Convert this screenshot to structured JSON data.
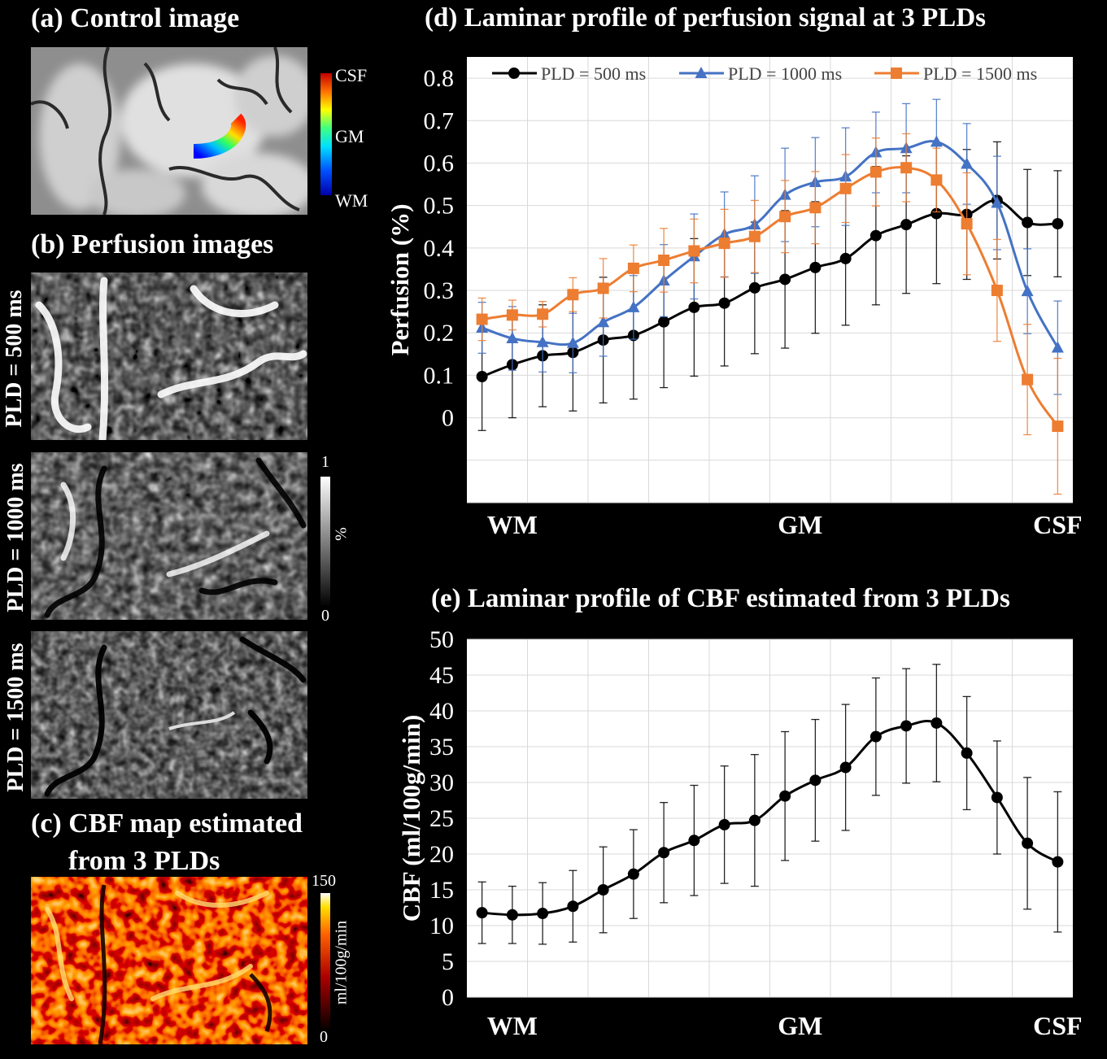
{
  "panels": {
    "a": {
      "title": "(a) Control image",
      "colorbar": {
        "top": "CSF",
        "mid": "GM",
        "bottom": "WM"
      }
    },
    "b": {
      "title": "(b) Perfusion images",
      "rows": [
        "PLD = 500 ms",
        "PLD = 1000 ms",
        "PLD = 1500 ms"
      ],
      "colorbar": {
        "max": "1",
        "min": "0",
        "unit": "%"
      }
    },
    "c": {
      "title_line1": "(c) CBF map estimated",
      "title_line2": "from 3 PLDs",
      "colorbar": {
        "max": "150",
        "min": "0",
        "unit": "ml/100g/min"
      }
    },
    "d": {
      "title": "(d) Laminar profile of perfusion signal at 3 PLDs"
    },
    "e": {
      "title": "(e) Laminar profile of CBF estimated from 3 PLDs"
    }
  },
  "chart_data": [
    {
      "type": "line",
      "ylabel": "Perfusion (%)",
      "ylim": [
        -0.2,
        0.85
      ],
      "yticks": [
        "0.8",
        "0.7",
        "0.6",
        "0.5",
        "0.4",
        "0.3",
        "0.2",
        "0.1",
        "0"
      ],
      "xtick_labels": [
        "WM",
        "GM",
        "CSF"
      ],
      "grid": true,
      "legend": "top",
      "series": [
        {
          "name": "PLD = 500 ms",
          "color": "#000000",
          "marker": "circle",
          "values": [
            0.097,
            0.125,
            0.146,
            0.154,
            0.183,
            0.194,
            0.226,
            0.26,
            0.27,
            0.306,
            0.326,
            0.354,
            0.375,
            0.429,
            0.455,
            0.481,
            0.479,
            0.512,
            0.46,
            0.457
          ],
          "err": [
            0.127,
            0.125,
            0.12,
            0.138,
            0.148,
            0.15,
            0.155,
            0.162,
            0.148,
            0.155,
            0.162,
            0.155,
            0.157,
            0.163,
            0.162,
            0.165,
            0.153,
            0.138,
            0.125,
            0.125
          ]
        },
        {
          "name": "PLD = 1000 ms",
          "color": "#4472C4",
          "marker": "triangle",
          "values": [
            0.212,
            0.187,
            0.178,
            0.176,
            0.225,
            0.26,
            0.323,
            0.38,
            0.432,
            0.455,
            0.525,
            0.555,
            0.568,
            0.625,
            0.635,
            0.65,
            0.598,
            0.506,
            0.298,
            0.165
          ],
          "err": [
            0.06,
            0.075,
            0.07,
            0.07,
            0.08,
            0.075,
            0.085,
            0.1,
            0.1,
            0.115,
            0.11,
            0.105,
            0.115,
            0.095,
            0.105,
            0.1,
            0.095,
            0.11,
            0.1,
            0.11
          ]
        },
        {
          "name": "PLD = 1500 ms",
          "color": "#ED7D31",
          "marker": "square",
          "values": [
            0.232,
            0.242,
            0.244,
            0.29,
            0.305,
            0.352,
            0.371,
            0.393,
            0.411,
            0.427,
            0.474,
            0.495,
            0.54,
            0.579,
            0.589,
            0.56,
            0.457,
            0.3,
            0.09,
            -0.02
          ],
          "err": [
            0.05,
            0.035,
            0.03,
            0.04,
            0.07,
            0.055,
            0.075,
            0.075,
            0.08,
            0.085,
            0.085,
            0.085,
            0.08,
            0.08,
            0.08,
            0.075,
            0.12,
            0.12,
            0.13,
            0.16
          ]
        }
      ]
    },
    {
      "type": "line",
      "ylabel": "CBF (ml/100g/min)",
      "ylim": [
        0,
        50
      ],
      "yticks": [
        "50",
        "45",
        "40",
        "35",
        "30",
        "25",
        "20",
        "15",
        "10",
        "5",
        "0"
      ],
      "xtick_labels": [
        "WM",
        "GM",
        "CSF"
      ],
      "grid": true,
      "series": [
        {
          "color": "#000000",
          "marker": "circle",
          "values": [
            11.8,
            11.5,
            11.7,
            12.7,
            15.0,
            17.2,
            20.2,
            21.9,
            24.1,
            24.7,
            28.1,
            30.3,
            32.1,
            36.4,
            37.9,
            38.3,
            34.1,
            27.9,
            21.5,
            18.9
          ],
          "err": [
            4.3,
            4.0,
            4.3,
            5.0,
            6.0,
            6.2,
            7.0,
            7.7,
            8.2,
            9.2,
            9.0,
            8.5,
            8.8,
            8.2,
            8.0,
            8.2,
            7.9,
            7.9,
            9.2,
            9.8
          ]
        }
      ]
    }
  ]
}
